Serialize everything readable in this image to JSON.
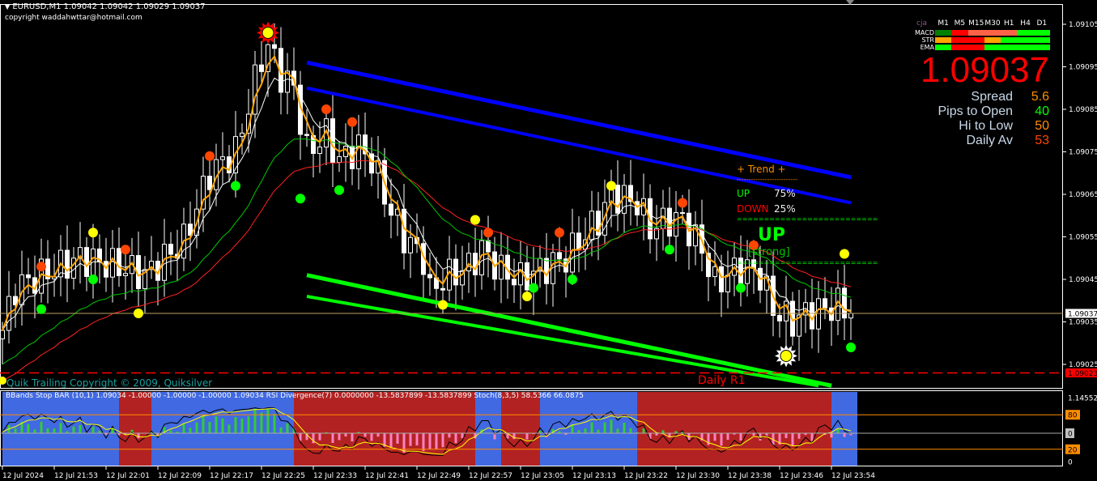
{
  "header": {
    "symbol_line": "EURUSD,M1  1.09042 1.09042 1.09029 1.09037",
    "copyright": "copyright waddahwttar@hotmail.com"
  },
  "info_panel": {
    "label": "cja",
    "timeframes": [
      "M1",
      "M5",
      "M15",
      "M30",
      "H1",
      "H4",
      "D1"
    ],
    "rows": [
      {
        "name": "MACD",
        "colors": [
          "#008000",
          "#ff0000",
          "#ff6347",
          "#ff6347",
          "#ff6347",
          "#00ff00",
          "#00ff00"
        ]
      },
      {
        "name": "STR",
        "colors": [
          "#ffa500",
          "#ff0000",
          "#ff0000",
          "#ffa500",
          "#00ff00",
          "#00ff00",
          "#00ff00"
        ]
      },
      {
        "name": "EMA",
        "colors": [
          "#00ff00",
          "#ff0000",
          "#ff0000",
          "#00ff00",
          "#00ff00",
          "#00ff00",
          "#00ff00"
        ]
      }
    ],
    "price": "1.09037",
    "stats": [
      {
        "label": "Spread",
        "value": "5.6",
        "color": "#ff8c00"
      },
      {
        "label": "Pips to Open",
        "value": "40",
        "color": "#00ff00"
      },
      {
        "label": "Hi to Low",
        "value": "50",
        "color": "#ff8c00"
      },
      {
        "label": "Daily Av",
        "value": "53",
        "color": "#ff4500"
      }
    ]
  },
  "trend_panel": {
    "title": "+   Trend   +",
    "up_label": "UP",
    "up_value": "75%",
    "down_label": "DOWN",
    "down_value": "25%",
    "signal": "UP",
    "strength": "[strong]"
  },
  "labels": {
    "quik_trailing": "Quik Trailing   Copyright © 2009, Quiksilver",
    "daily_r1": "Daily R1",
    "indicator_line": "BBands Stop BAR (10,1) 1.09034 -1.00000 -1.00000 -1.00000 1.09034  RSI Divergence(7) 0.0000000 -13.5837899 -13.5837899  Stoch(8,3,5) 58.5366 66.0875"
  },
  "chart_data": {
    "type": "candlestick",
    "symbol": "EURUSD",
    "timeframe": "M1",
    "ohlc_last": {
      "open": 1.09042,
      "high": 1.09042,
      "low": 1.09029,
      "close": 1.09037
    },
    "time_range": [
      "21:45",
      "23:57"
    ],
    "ylim": [
      1.09018,
      1.09114
    ],
    "y_ticks": [
      "1.09105",
      "1.09095",
      "1.09085",
      "1.09075",
      "1.09065",
      "1.09055",
      "1.09045",
      "1.09035",
      "1.09025"
    ],
    "x_ticks": [
      "12 Jul 2024",
      "12 Jul 21:53",
      "12 Jul 22:01",
      "12 Jul 22:09",
      "12 Jul 22:17",
      "12 Jul 22:25",
      "12 Jul 22:33",
      "12 Jul 22:41",
      "12 Jul 22:49",
      "12 Jul 22:57",
      "12 Jul 23:05",
      "12 Jul 23:13",
      "12 Jul 23:22",
      "12 Jul 23:30",
      "12 Jul 23:38",
      "12 Jul 23:46",
      "12 Jul 23:54"
    ],
    "current_price_label": "1.09037",
    "daily_r1_price_label": "1.09023",
    "daily_r1_price": 1.09023,
    "close_path": [
      [
        "21:45",
        1.09033
      ],
      [
        "21:47",
        1.09043
      ],
      [
        "21:51",
        1.09046
      ],
      [
        "21:57",
        1.0905
      ],
      [
        "22:03",
        1.09048
      ],
      [
        "22:07",
        1.09046
      ],
      [
        "22:13",
        1.09054
      ],
      [
        "22:17",
        1.0907
      ],
      [
        "22:21",
        1.09075
      ],
      [
        "22:23",
        1.09086
      ],
      [
        "22:25",
        1.09097
      ],
      [
        "22:26",
        1.091
      ],
      [
        "22:28",
        1.09093
      ],
      [
        "22:30",
        1.0909
      ],
      [
        "22:32",
        1.09075
      ],
      [
        "22:35",
        1.09079
      ],
      [
        "22:37",
        1.09073
      ],
      [
        "22:40",
        1.09076
      ],
      [
        "22:42",
        1.09073
      ],
      [
        "22:45",
        1.09061
      ],
      [
        "22:47",
        1.09055
      ],
      [
        "22:50",
        1.0905
      ],
      [
        "22:51",
        1.09042
      ],
      [
        "22:53",
        1.09045
      ],
      [
        "22:57",
        1.09048
      ],
      [
        "22:59",
        1.09052
      ],
      [
        "23:02",
        1.09047
      ],
      [
        "23:05",
        1.09045
      ],
      [
        "23:09",
        1.09048
      ],
      [
        "23:12",
        1.0905
      ],
      [
        "23:14",
        1.09054
      ],
      [
        "23:17",
        1.09059
      ],
      [
        "23:19",
        1.09065
      ],
      [
        "23:23",
        1.09063
      ],
      [
        "23:25",
        1.09057
      ],
      [
        "23:28",
        1.09059
      ],
      [
        "23:30",
        1.09059
      ],
      [
        "23:33",
        1.09052
      ],
      [
        "23:35",
        1.09044
      ],
      [
        "23:39",
        1.09048
      ],
      [
        "23:42",
        1.09046
      ],
      [
        "23:44",
        1.09038
      ],
      [
        "23:47",
        1.09035
      ],
      [
        "23:49",
        1.09037
      ],
      [
        "23:52",
        1.09038
      ],
      [
        "23:54",
        1.09039
      ],
      [
        "23:56",
        1.09037
      ]
    ],
    "channel_lines": [
      {
        "color": "#0000ff",
        "from": [
          "22:32",
          1.09096
        ],
        "to": [
          "23:56",
          1.09069
        ]
      },
      {
        "color": "#0000ff",
        "from": [
          "22:32",
          1.0909
        ],
        "to": [
          "23:56",
          1.09063
        ]
      },
      {
        "color": "#00ff00",
        "from": [
          "22:32",
          1.09046
        ],
        "to": [
          "23:53",
          1.0902
        ]
      },
      {
        "color": "#00ff00",
        "from": [
          "22:32",
          1.09041
        ],
        "to": [
          "23:51",
          1.0902
        ]
      }
    ],
    "signal_dots": [
      {
        "time": "21:51",
        "price": 1.09048,
        "color": "#ff4500"
      },
      {
        "time": "22:04",
        "price": 1.09052,
        "color": "#ff4500"
      },
      {
        "time": "22:17",
        "price": 1.09074,
        "color": "#ff4500"
      },
      {
        "time": "22:35",
        "price": 1.09085,
        "color": "#ff4500"
      },
      {
        "time": "22:39",
        "price": 1.09082,
        "color": "#ff4500"
      },
      {
        "time": "23:00",
        "price": 1.09056,
        "color": "#ff4500"
      },
      {
        "time": "23:11",
        "price": 1.09056,
        "color": "#ff4500"
      },
      {
        "time": "23:30",
        "price": 1.09063,
        "color": "#ff4500"
      },
      {
        "time": "23:41",
        "price": 1.09053,
        "color": "#ff4500"
      },
      {
        "time": "21:59",
        "price": 1.09056,
        "color": "#ffff00"
      },
      {
        "time": "22:06",
        "price": 1.09037,
        "color": "#ffff00"
      },
      {
        "time": "22:53",
        "price": 1.09039,
        "color": "#ffff00"
      },
      {
        "time": "22:58",
        "price": 1.09059,
        "color": "#ffff00"
      },
      {
        "time": "23:06",
        "price": 1.09041,
        "color": "#ffff00"
      },
      {
        "time": "23:19",
        "price": 1.09067,
        "color": "#ffff00"
      },
      {
        "time": "23:55",
        "price": 1.09051,
        "color": "#ffff00"
      },
      {
        "time": "21:51",
        "price": 1.09038,
        "color": "#00ff00"
      },
      {
        "time": "21:59",
        "price": 1.09045,
        "color": "#00ff00"
      },
      {
        "time": "22:21",
        "price": 1.09067,
        "color": "#00ff00"
      },
      {
        "time": "22:31",
        "price": 1.09064,
        "color": "#00ff00"
      },
      {
        "time": "22:37",
        "price": 1.09066,
        "color": "#00ff00"
      },
      {
        "time": "23:07",
        "price": 1.09043,
        "color": "#00ff00"
      },
      {
        "time": "23:13",
        "price": 1.09045,
        "color": "#00ff00"
      },
      {
        "time": "23:28",
        "price": 1.09052,
        "color": "#00ff00"
      },
      {
        "time": "23:39",
        "price": 1.09043,
        "color": "#00ff00"
      },
      {
        "time": "23:56",
        "price": 1.09029,
        "color": "#00ff00"
      }
    ],
    "sun_markers": [
      {
        "time": "22:26",
        "price": 1.09103,
        "color": "#ff0000"
      },
      {
        "time": "23:46",
        "price": 1.09027,
        "color": "#ffffff"
      }
    ],
    "subwindow": {
      "y_labels": [
        "1.14552",
        "80",
        "0",
        "20",
        "0"
      ],
      "levels": [
        80,
        20
      ],
      "bband_states": [
        [
          "21:45",
          "22:03",
          "up"
        ],
        [
          "22:03",
          "22:08",
          "down"
        ],
        [
          "22:08",
          "22:30",
          "up"
        ],
        [
          "22:30",
          "22:58",
          "down"
        ],
        [
          "22:58",
          "23:02",
          "up"
        ],
        [
          "23:02",
          "23:08",
          "down"
        ],
        [
          "23:08",
          "23:23",
          "up"
        ],
        [
          "23:23",
          "23:53",
          "down"
        ],
        [
          "23:53",
          "23:57",
          "up"
        ]
      ],
      "state_colors": {
        "up": "#4169e1",
        "down": "#b22222"
      },
      "stoch_last": [
        58.5366,
        66.0875
      ]
    }
  }
}
